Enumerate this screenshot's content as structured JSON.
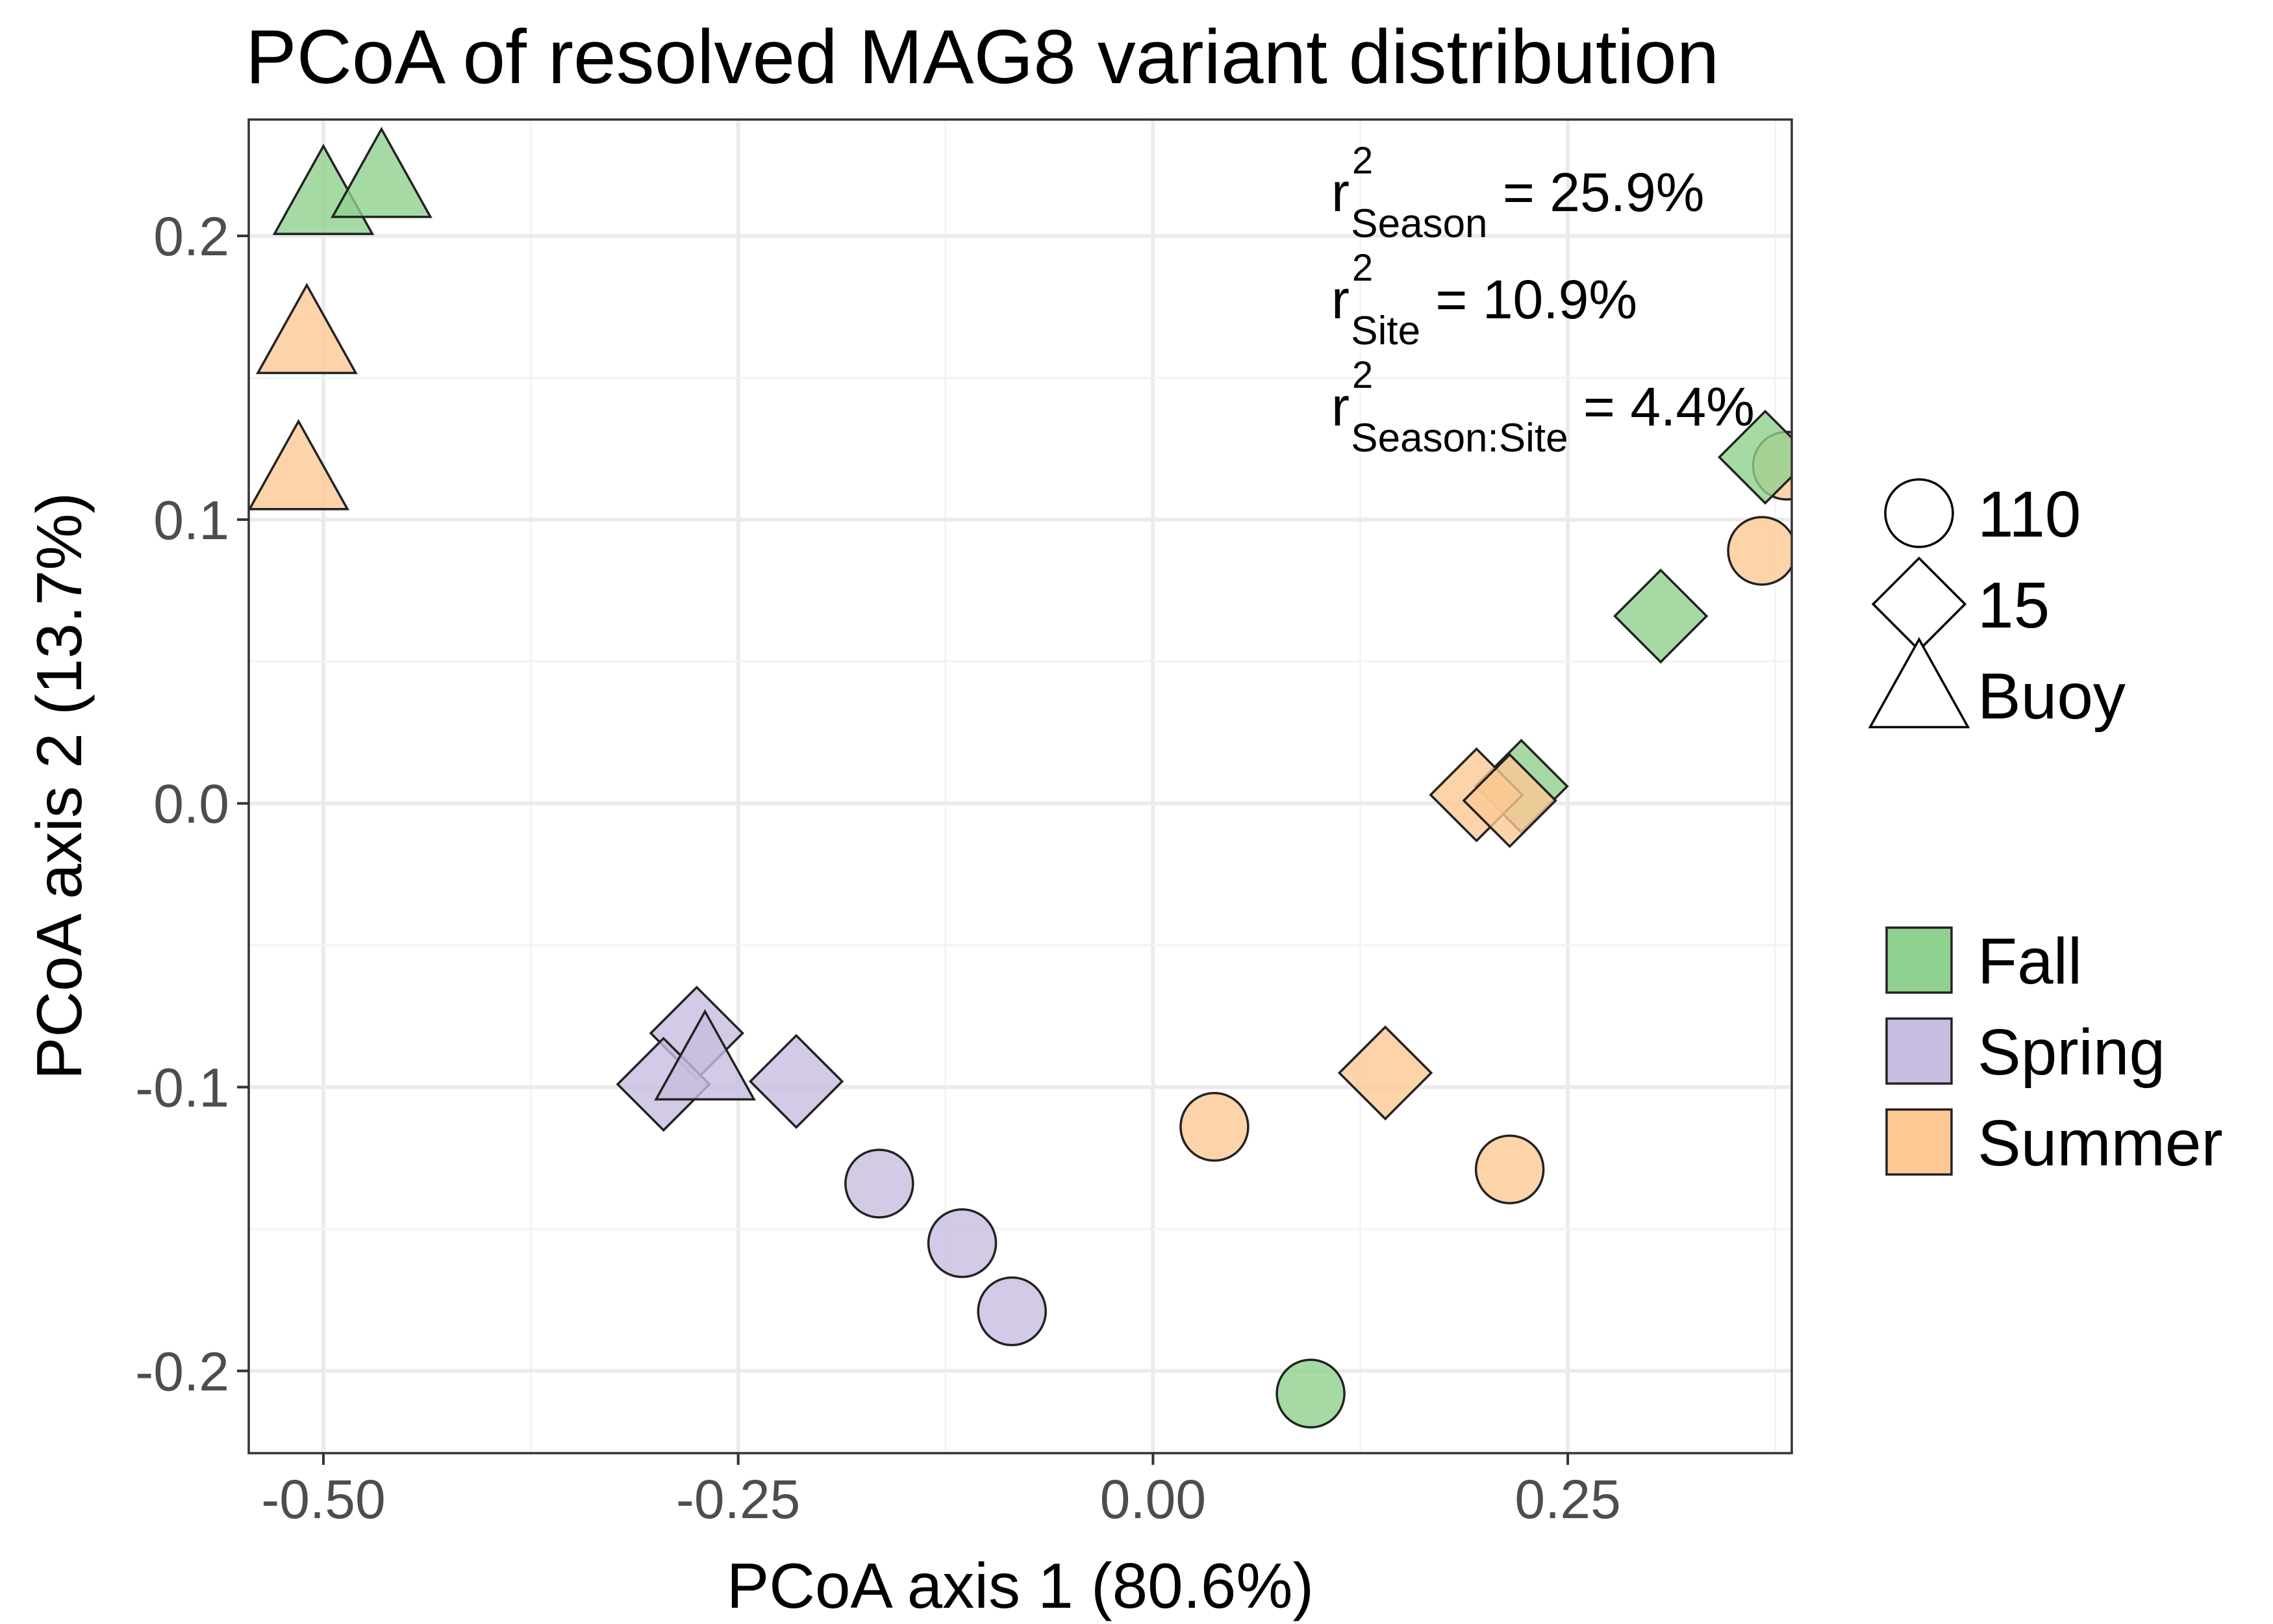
{
  "chart_data": {
    "type": "scatter",
    "title": "PCoA of resolved MAG8 variant distribution",
    "xlabel": "PCoA axis 1 (80.6%)",
    "ylabel": "PCoA axis 2 (13.7%)",
    "xlim": [
      -0.545,
      0.385
    ],
    "ylim": [
      -0.229,
      0.241
    ],
    "x_ticks": [
      -0.5,
      -0.25,
      0.0,
      0.25
    ],
    "x_tick_labels": [
      "-0.50",
      "-0.25",
      "0.00",
      "0.25"
    ],
    "y_ticks": [
      -0.2,
      -0.1,
      0.0,
      0.1,
      0.2
    ],
    "y_tick_labels": [
      "-0.2",
      "-0.1",
      "0.0",
      "0.1",
      "0.2"
    ],
    "grid": true,
    "legend_placement": "right",
    "legend_shape": {
      "entries": [
        {
          "label": "110",
          "shape": "circle"
        },
        {
          "label": "15",
          "shape": "diamond"
        },
        {
          "label": "Buoy",
          "shape": "triangle"
        }
      ]
    },
    "legend_fill": {
      "entries": [
        {
          "label": "Fall",
          "color": "#8fd18f"
        },
        {
          "label": "Spring",
          "color": "#c7bde0"
        },
        {
          "label": "Summer",
          "color": "#fdc894"
        }
      ]
    },
    "annotations": [
      {
        "prefix": "r",
        "sup": "2",
        "sub": "Season",
        "value": " = 25.9%"
      },
      {
        "prefix": "r",
        "sup": "2",
        "sub": "Site",
        "value": " = 10.9%"
      },
      {
        "prefix": "r",
        "sup": "2",
        "sub": "Season:Site",
        "value": " = 4.4%"
      }
    ],
    "points": [
      {
        "x": -0.5,
        "y": 0.212,
        "site": "Buoy",
        "season": "Fall"
      },
      {
        "x": -0.465,
        "y": 0.218,
        "site": "Buoy",
        "season": "Fall"
      },
      {
        "x": -0.51,
        "y": 0.163,
        "site": "Buoy",
        "season": "Summer"
      },
      {
        "x": -0.515,
        "y": 0.115,
        "site": "Buoy",
        "season": "Summer"
      },
      {
        "x": 0.425,
        "y": 0.135,
        "site": "110",
        "season": "Fall"
      },
      {
        "x": 0.437,
        "y": 0.139,
        "site": "110",
        "season": "Fall"
      },
      {
        "x": 0.382,
        "y": 0.119,
        "site": "110",
        "season": "Summer"
      },
      {
        "x": 0.369,
        "y": 0.122,
        "site": "15",
        "season": "Fall"
      },
      {
        "x": 0.367,
        "y": 0.089,
        "site": "110",
        "season": "Summer"
      },
      {
        "x": 0.306,
        "y": 0.066,
        "site": "15",
        "season": "Fall"
      },
      {
        "x": 0.222,
        "y": 0.006,
        "site": "15",
        "season": "Fall"
      },
      {
        "x": 0.195,
        "y": 0.003,
        "site": "15",
        "season": "Summer"
      },
      {
        "x": 0.215,
        "y": 0.001,
        "site": "15",
        "season": "Summer"
      },
      {
        "x": -0.275,
        "y": -0.081,
        "site": "15",
        "season": "Spring"
      },
      {
        "x": -0.295,
        "y": -0.099,
        "site": "15",
        "season": "Spring"
      },
      {
        "x": -0.27,
        "y": -0.093,
        "site": "Buoy",
        "season": "Spring"
      },
      {
        "x": -0.215,
        "y": -0.098,
        "site": "15",
        "season": "Spring"
      },
      {
        "x": -0.165,
        "y": -0.134,
        "site": "110",
        "season": "Spring"
      },
      {
        "x": -0.115,
        "y": -0.155,
        "site": "110",
        "season": "Spring"
      },
      {
        "x": -0.085,
        "y": -0.179,
        "site": "110",
        "season": "Spring"
      },
      {
        "x": 0.037,
        "y": -0.114,
        "site": "110",
        "season": "Summer"
      },
      {
        "x": 0.14,
        "y": -0.095,
        "site": "15",
        "season": "Summer"
      },
      {
        "x": 0.215,
        "y": -0.129,
        "site": "110",
        "season": "Summer"
      },
      {
        "x": 0.095,
        "y": -0.208,
        "site": "110",
        "season": "Fall"
      }
    ]
  }
}
